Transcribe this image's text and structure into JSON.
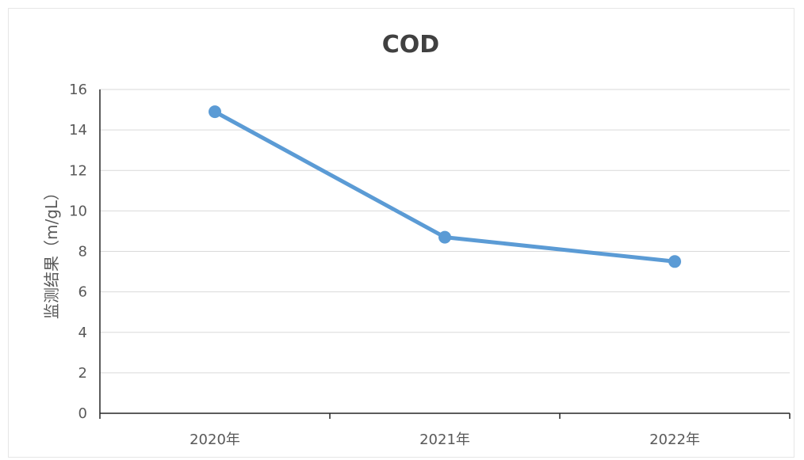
{
  "chart_data": {
    "type": "line",
    "title": "COD",
    "ylabel": "监测结果（m/gL）",
    "xlabel": "",
    "categories": [
      "2020年",
      "2021年",
      "2022年"
    ],
    "series": [
      {
        "values": [
          14.9,
          8.7,
          7.5
        ]
      }
    ],
    "ylim": [
      0,
      16
    ],
    "yticks": [
      0,
      2,
      4,
      6,
      8,
      10,
      12,
      14,
      16
    ],
    "grid": true,
    "legend": "none",
    "colors": {
      "series": "#5b9bd5"
    }
  }
}
